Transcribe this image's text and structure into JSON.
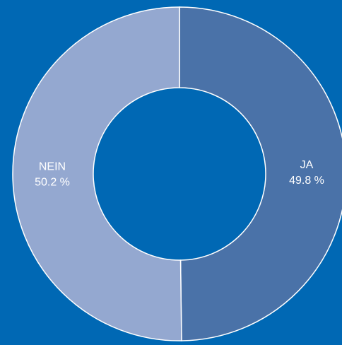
{
  "chart_data": {
    "type": "donut",
    "categories": [
      "JA",
      "NEIN"
    ],
    "values": [
      49.8,
      50.2
    ],
    "value_labels": [
      "49.8 %",
      "50.2 %"
    ],
    "colors": [
      "#4a72a8",
      "#94a8d0"
    ]
  }
}
